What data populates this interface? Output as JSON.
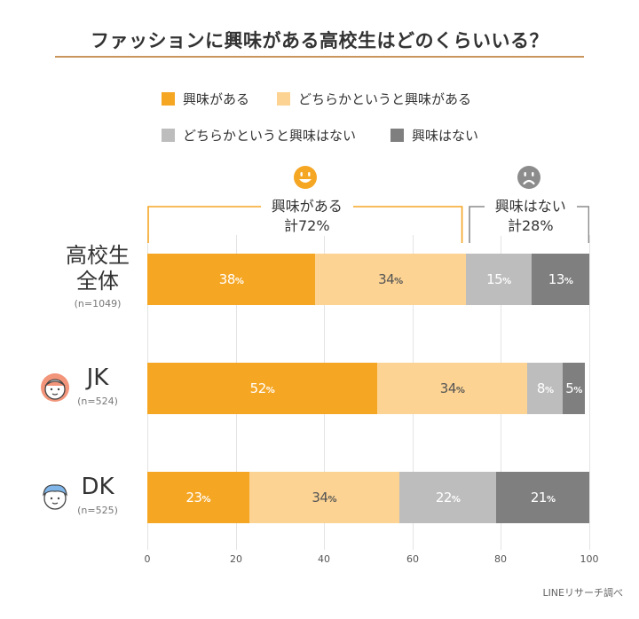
{
  "title": "ファッションに興味がある高校生はどのくらいいる？",
  "legend": [
    {
      "label": "興味がある",
      "color": "#f5a623"
    },
    {
      "label": "どちらかというと興味がある",
      "color": "#fcd393"
    },
    {
      "label": "どちらかというと興味はない",
      "color": "#bdbdbd"
    },
    {
      "label": "興味はない",
      "color": "#7f7f7f"
    }
  ],
  "groups": [
    {
      "line1": "興味がある",
      "line2": "計72%",
      "face": "smile-icon",
      "color": "#f5a623"
    },
    {
      "line1": "興味はない",
      "line2": "計28%",
      "face": "frown-icon",
      "color": "#8c8c8c"
    }
  ],
  "rows": [
    {
      "name_lines": [
        "高校生",
        "全体"
      ],
      "n": "(n=1049)"
    },
    {
      "name_lines": [
        "JK"
      ],
      "n": "(n=524)",
      "avatar": "girl-avatar-icon"
    },
    {
      "name_lines": [
        "DK"
      ],
      "n": "(n=525)",
      "avatar": "boy-avatar-icon"
    }
  ],
  "chart_data": {
    "type": "bar",
    "orientation": "horizontal",
    "stacked": true,
    "title": "ファッションに興味がある高校生はどのくらいいる？",
    "categories": [
      "高校生全体",
      "JK",
      "DK"
    ],
    "series": [
      {
        "name": "興味がある",
        "values": [
          38,
          52,
          23
        ]
      },
      {
        "name": "どちらかというと興味がある",
        "values": [
          34,
          34,
          34
        ]
      },
      {
        "name": "どちらかというと興味はない",
        "values": [
          15,
          8,
          22
        ]
      },
      {
        "name": "興味はない",
        "values": [
          13,
          5,
          21
        ]
      }
    ],
    "value_suffix": "%",
    "xlim": [
      0,
      100
    ],
    "x_ticks": [
      0,
      20,
      40,
      60,
      80,
      100
    ],
    "grid": true,
    "legend_position": "top",
    "annotations": [
      "興味がある 計72%",
      "興味はない 計28%"
    ]
  },
  "source": "LINEリサーチ調べ"
}
